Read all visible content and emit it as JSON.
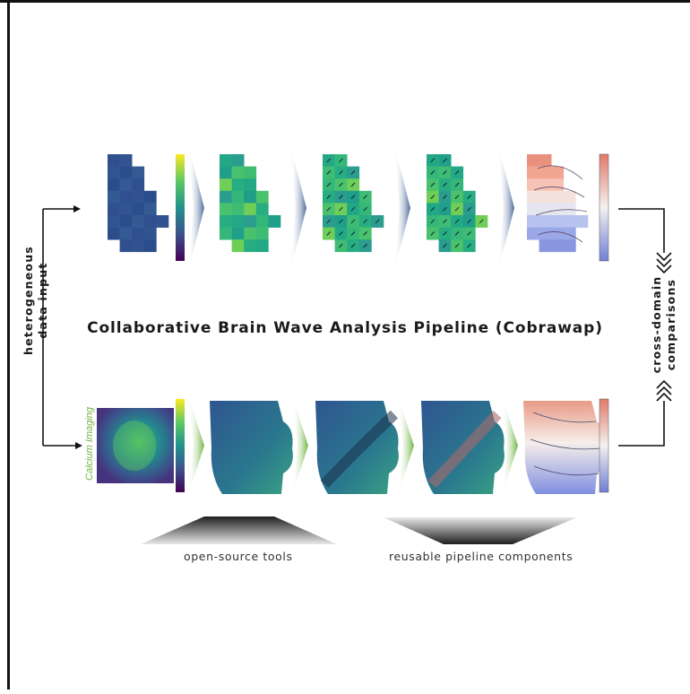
{
  "title": "Collaborative Brain Wave Analysis Pipeline (Cobrawap)",
  "left_label": [
    "heterogeneous",
    "data input"
  ],
  "right_label": [
    "cross-domain",
    "comparisons"
  ],
  "calcium_label": "Calcium Imaging",
  "captions": {
    "tools": "open-source tools",
    "components": "reusable pipeline components"
  },
  "icons": {
    "flow_arrow": "arrow-right-icon",
    "stage_chevron": "chevron-right-icon",
    "double_chevron": "double-chevron-icon"
  },
  "colors": {
    "viridis_dark": "#440154",
    "viridis_mid": "#21918c",
    "viridis_light": "#fde725",
    "coolwarm_red": "#d6604d",
    "coolwarm_blue": "#4575b4",
    "chevron_blue": "#5a7aa8",
    "chevron_green": "#6db33f",
    "calcium_green": "#6db33f"
  }
}
